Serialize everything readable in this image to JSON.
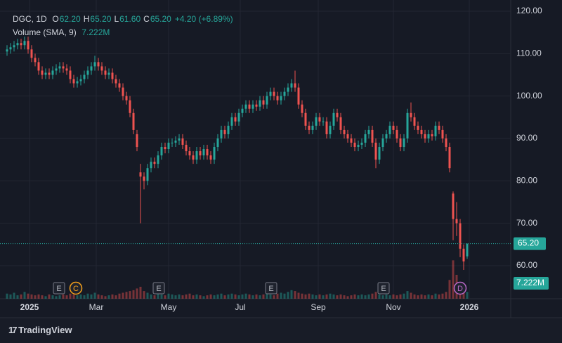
{
  "chart_data": {
    "type": "candlestick",
    "legend": {
      "symbol": "DGC, 1D",
      "fields": [
        {
          "key": "O",
          "value": "62.20"
        },
        {
          "key": "H",
          "value": "65.20"
        },
        {
          "key": "L",
          "value": "61.60"
        },
        {
          "key": "C",
          "value": "65.20"
        }
      ],
      "change": "+4.20 (+6.89%)"
    },
    "volume_title": "Volume (SMA, 9)",
    "volume_sma": "7.222M",
    "last_price_label": "65.20",
    "brand": "TradingView",
    "up_color": "#26a69a",
    "down_color": "#ef5350",
    "open": [
      110.5,
      111,
      111.5,
      112,
      112.5,
      112,
      113,
      111,
      109,
      108,
      106,
      105,
      105.5,
      105,
      106,
      106.5,
      107,
      106.5,
      106,
      104,
      103,
      103.5,
      104,
      105,
      106,
      107,
      108,
      107,
      106,
      105,
      105.5,
      104,
      103,
      102,
      100,
      99,
      96,
      91,
      82,
      81,
      80,
      83,
      84.5,
      84,
      86,
      88,
      87.5,
      89,
      89,
      89.5,
      90,
      88.5,
      87,
      86,
      85,
      87,
      86,
      87.5,
      86,
      85,
      88,
      90,
      92,
      91,
      93,
      95,
      94,
      96,
      97,
      98,
      97,
      98,
      97.5,
      99,
      98,
      100,
      101,
      100,
      99,
      100,
      101,
      102,
      103,
      102,
      98,
      96,
      93,
      92,
      93,
      95,
      94,
      94,
      91,
      93,
      96,
      95,
      92,
      91,
      90,
      89,
      88,
      88.5,
      89,
      91,
      92,
      89,
      85,
      88,
      90,
      91,
      93,
      92,
      90,
      88,
      90,
      96,
      95,
      93,
      92,
      91,
      90,
      91,
      90.5,
      93,
      92,
      90,
      88,
      77,
      71,
      70,
      64,
      62.2
    ],
    "high": [
      112,
      112.5,
      113,
      113.5,
      113.5,
      114,
      114,
      112,
      110,
      109,
      107,
      106.5,
      106.5,
      107,
      107.5,
      108,
      108,
      107.5,
      107,
      105,
      104.5,
      105,
      106,
      107,
      108,
      109.5,
      109,
      108,
      107,
      106.5,
      106.5,
      105,
      104,
      103,
      101,
      100,
      97,
      92,
      84,
      82,
      84,
      85.5,
      85.5,
      87,
      89,
      89,
      90,
      90,
      90.5,
      91,
      91,
      89.5,
      88,
      87,
      88,
      88,
      88.5,
      88.5,
      87,
      89,
      91,
      93,
      93,
      94,
      96,
      96,
      97,
      98,
      99,
      99,
      99,
      99,
      100,
      100,
      101,
      102,
      102,
      101,
      101,
      102,
      103,
      104,
      106,
      103,
      99,
      97,
      94,
      94,
      96,
      96,
      95,
      95,
      94,
      97,
      97,
      96,
      93,
      92,
      91,
      90,
      89.5,
      90,
      92,
      93,
      93,
      90,
      89,
      91,
      92,
      94,
      94,
      93,
      91,
      91,
      97,
      98.5,
      96,
      94,
      93,
      92,
      92,
      92,
      94,
      94,
      93,
      91,
      89,
      77.5,
      75,
      71,
      65,
      65.2
    ],
    "low": [
      109.5,
      110,
      110.5,
      111,
      111,
      111,
      110,
      108,
      107,
      105,
      104,
      104,
      104,
      104,
      105,
      105.5,
      105.5,
      105,
      103,
      102,
      102,
      102.5,
      103,
      104,
      105,
      106,
      106,
      105,
      104,
      104,
      103,
      102,
      101,
      99,
      98,
      95,
      91,
      87,
      70,
      78,
      79,
      82,
      83,
      83,
      85,
      86.5,
      86.5,
      88,
      88,
      88.5,
      87.5,
      86,
      85,
      84,
      84,
      85,
      85,
      85,
      84,
      84,
      87,
      89,
      90,
      90,
      92,
      93,
      93,
      95,
      96,
      96,
      96,
      96.5,
      96.5,
      97,
      97,
      99,
      99,
      98,
      98,
      99,
      100,
      101,
      101,
      97,
      95,
      92,
      91,
      91,
      92,
      93,
      93,
      90,
      90,
      92,
      94,
      91,
      90,
      89,
      88,
      87,
      87,
      87.5,
      88,
      90,
      88,
      83,
      84,
      87,
      89,
      90,
      91,
      89,
      87,
      87,
      89,
      94,
      92,
      91,
      90,
      89,
      89,
      89.5,
      89.5,
      91,
      89,
      87,
      82,
      66,
      67,
      62,
      59,
      61.6
    ],
    "close": [
      111,
      111.5,
      112,
      112.5,
      112,
      113,
      111,
      109,
      108,
      106,
      105,
      105.5,
      105,
      106,
      106.5,
      107,
      106.5,
      106,
      104,
      103,
      103.5,
      104,
      105,
      106,
      107,
      108,
      107,
      106,
      105,
      105.5,
      104,
      103,
      102,
      100,
      99,
      96,
      92,
      88,
      81,
      80,
      83,
      84.5,
      84,
      86,
      88,
      87.5,
      89,
      89,
      89.5,
      90,
      88.5,
      87,
      86,
      85,
      87,
      86,
      87.5,
      86,
      85,
      88,
      90,
      92,
      91,
      93,
      95,
      94,
      96,
      97,
      98,
      97,
      98,
      97.5,
      99,
      98,
      100,
      101,
      100,
      99,
      100,
      101,
      102,
      103,
      102,
      98,
      96,
      93,
      92,
      93,
      95,
      94,
      94,
      91,
      93,
      96,
      95,
      92,
      91,
      90,
      89,
      88,
      88.5,
      89,
      91,
      92,
      89,
      85,
      88,
      90,
      91,
      93,
      92,
      90,
      88,
      90,
      96,
      95,
      93,
      92,
      91,
      90,
      91,
      90.5,
      93,
      92,
      90,
      88,
      83,
      71,
      70,
      64,
      61,
      65.2
    ],
    "volume": [
      6,
      5,
      7,
      4,
      5,
      8,
      6,
      5,
      4,
      5,
      4,
      3,
      5,
      4,
      3,
      4,
      5,
      4,
      6,
      5,
      4,
      5,
      4,
      6,
      5,
      7,
      5,
      4,
      3,
      4,
      5,
      4,
      6,
      7,
      8,
      9,
      10,
      12,
      14,
      9,
      7,
      5,
      4,
      6,
      5,
      4,
      6,
      5,
      4,
      5,
      4,
      5,
      6,
      4,
      5,
      4,
      3,
      4,
      5,
      4,
      5,
      6,
      4,
      5,
      6,
      5,
      4,
      5,
      6,
      5,
      4,
      5,
      4,
      5,
      6,
      5,
      4,
      6,
      7,
      6,
      8,
      10,
      9,
      7,
      6,
      5,
      6,
      5,
      4,
      5,
      4,
      5,
      6,
      5,
      4,
      5,
      4,
      3,
      4,
      5,
      4,
      5,
      4,
      5,
      6,
      8,
      5,
      4,
      5,
      4,
      5,
      4,
      5,
      6,
      9,
      7,
      5,
      4,
      5,
      4,
      5,
      4,
      6,
      5,
      6,
      8,
      22,
      45,
      28,
      16,
      10,
      8
    ],
    "volume_ylim": [
      0,
      350
    ],
    "ylim": [
      52.2,
      122.65
    ],
    "yticks": [
      {
        "value": 60,
        "label": "60.00"
      },
      {
        "value": 70,
        "label": "70.00"
      },
      {
        "value": 80,
        "label": "80.00"
      },
      {
        "value": 90,
        "label": "90.00"
      },
      {
        "value": 100,
        "label": "100.00"
      },
      {
        "value": 110,
        "label": "110.00"
      },
      {
        "value": 120,
        "label": "120.00"
      }
    ],
    "xlim": [
      -2,
      143.4
    ],
    "xticks": [
      {
        "value": 6.4,
        "label": "2025"
      },
      {
        "value": 25.4,
        "label": "Mar"
      },
      {
        "value": 46,
        "label": "May"
      },
      {
        "value": 66.4,
        "label": "Jul"
      },
      {
        "value": 88.6,
        "label": "Sep"
      },
      {
        "value": 110,
        "label": "Nov"
      },
      {
        "value": 131.6,
        "label": "2026"
      }
    ],
    "events": [
      {
        "label": "E",
        "x": 14.8,
        "color": "#787b86"
      },
      {
        "label": "C",
        "x": 19.6,
        "color": "#f7a21b"
      },
      {
        "label": "E",
        "x": 43.2,
        "color": "#787b86"
      },
      {
        "label": "E",
        "x": 75.2,
        "color": "#787b86"
      },
      {
        "label": "E",
        "x": 107.2,
        "color": "#787b86"
      },
      {
        "label": "D",
        "x": 129,
        "color": "#ba68c8"
      }
    ],
    "grid": true
  }
}
